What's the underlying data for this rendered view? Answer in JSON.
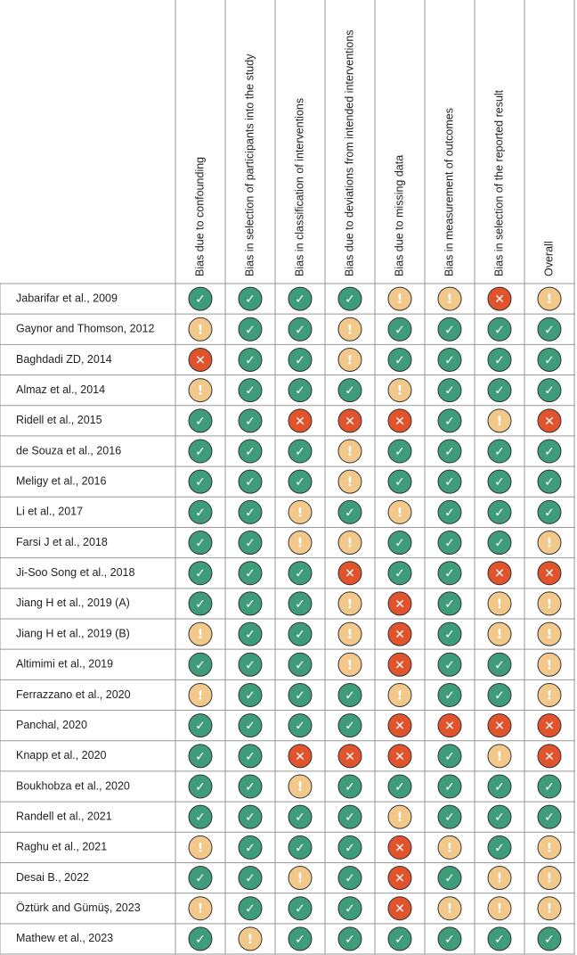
{
  "table": {
    "symbols": [
      {
        "symbol": "✓",
        "color": "#3f9c7a"
      },
      {
        "symbol": "!",
        "color": "#f2c98a"
      },
      {
        "symbol": "✕",
        "color": "#e0532d"
      }
    ],
    "columns": [
      "Bias due to confounding",
      "Bias in selection of participants into the study",
      "Bias in classification of interventions",
      "Bias due to deviations from intended interventions",
      "Bias due to missing data",
      "Bias in measurement of outcomes",
      "Bias in selection of the reported result",
      "Overall"
    ],
    "rows": [
      {
        "study": "Jabarifar et al., 2009",
        "judgments": [
          "✓",
          "✓",
          "✓",
          "✓",
          "!",
          "!",
          "✕",
          "!"
        ]
      },
      {
        "study": "Gaynor and Thomson, 2012",
        "judgments": [
          "!",
          "✓",
          "✓",
          "!",
          "✓",
          "✓",
          "✓",
          "✓"
        ]
      },
      {
        "study": "Baghdadi ZD, 2014",
        "judgments": [
          "✕",
          "✓",
          "✓",
          "!",
          "✓",
          "✓",
          "✓",
          "✓"
        ]
      },
      {
        "study": "Almaz et al., 2014",
        "judgments": [
          "!",
          "✓",
          "✓",
          "✓",
          "!",
          "✓",
          "✓",
          "✓"
        ]
      },
      {
        "study": "Ridell et al., 2015",
        "judgments": [
          "✓",
          "✓",
          "✕",
          "✕",
          "✕",
          "✓",
          "!",
          "✕"
        ]
      },
      {
        "study": "de Souza et al., 2016",
        "judgments": [
          "✓",
          "✓",
          "✓",
          "!",
          "✓",
          "✓",
          "✓",
          "✓"
        ]
      },
      {
        "study": "Meligy et al., 2016",
        "judgments": [
          "✓",
          "✓",
          "✓",
          "!",
          "✓",
          "✓",
          "✓",
          "✓"
        ]
      },
      {
        "study": "Li et al., 2017",
        "judgments": [
          "✓",
          "✓",
          "!",
          "✓",
          "!",
          "✓",
          "✓",
          "✓"
        ]
      },
      {
        "study": "Farsi J et al., 2018",
        "judgments": [
          "✓",
          "✓",
          "!",
          "!",
          "✓",
          "✓",
          "✓",
          "!"
        ]
      },
      {
        "study": "Ji-Soo Song et al., 2018",
        "judgments": [
          "✓",
          "✓",
          "✓",
          "✕",
          "✓",
          "✓",
          "✕",
          "✕"
        ]
      },
      {
        "study": "Jiang H et al., 2019 (A)",
        "judgments": [
          "✓",
          "✓",
          "✓",
          "!",
          "✕",
          "✓",
          "!",
          "!"
        ]
      },
      {
        "study": "Jiang H et al., 2019 (B)",
        "judgments": [
          "!",
          "✓",
          "✓",
          "!",
          "✕",
          "✓",
          "!",
          "!"
        ]
      },
      {
        "study": "Altimimi et al., 2019",
        "judgments": [
          "✓",
          "✓",
          "✓",
          "!",
          "✕",
          "✓",
          "✓",
          "!"
        ]
      },
      {
        "study": "Ferrazzano et al., 2020",
        "judgments": [
          "!",
          "✓",
          "✓",
          "✓",
          "!",
          "✓",
          "✓",
          "!"
        ]
      },
      {
        "study": "Panchal, 2020",
        "judgments": [
          "✓",
          "✓",
          "✓",
          "✓",
          "✕",
          "✕",
          "✕",
          "✕"
        ]
      },
      {
        "study": "Knapp et al., 2020",
        "judgments": [
          "✓",
          "✓",
          "✕",
          "✕",
          "✕",
          "✓",
          "!",
          "✕"
        ]
      },
      {
        "study": "Boukhobza et al., 2020",
        "judgments": [
          "✓",
          "✓",
          "!",
          "✓",
          "✓",
          "✓",
          "✓",
          "✓"
        ]
      },
      {
        "study": "Randell et al., 2021",
        "judgments": [
          "✓",
          "✓",
          "✓",
          "✓",
          "!",
          "✓",
          "✓",
          "✓"
        ]
      },
      {
        "study": "Raghu et al., 2021",
        "judgments": [
          "!",
          "✓",
          "✓",
          "✓",
          "✕",
          "!",
          "✓",
          "!"
        ]
      },
      {
        "study": "Desai B., 2022",
        "judgments": [
          "✓",
          "✓",
          "!",
          "✓",
          "✕",
          "✓",
          "!",
          "!"
        ]
      },
      {
        "study": "Öztürk and Gümüş, 2023",
        "judgments": [
          "!",
          "✓",
          "✓",
          "✓",
          "✕",
          "!",
          "!",
          "!"
        ]
      },
      {
        "study": "Mathew et al., 2023",
        "judgments": [
          "✓",
          "!",
          "✓",
          "✓",
          "✓",
          "✓",
          "✓",
          "✓"
        ]
      }
    ]
  }
}
